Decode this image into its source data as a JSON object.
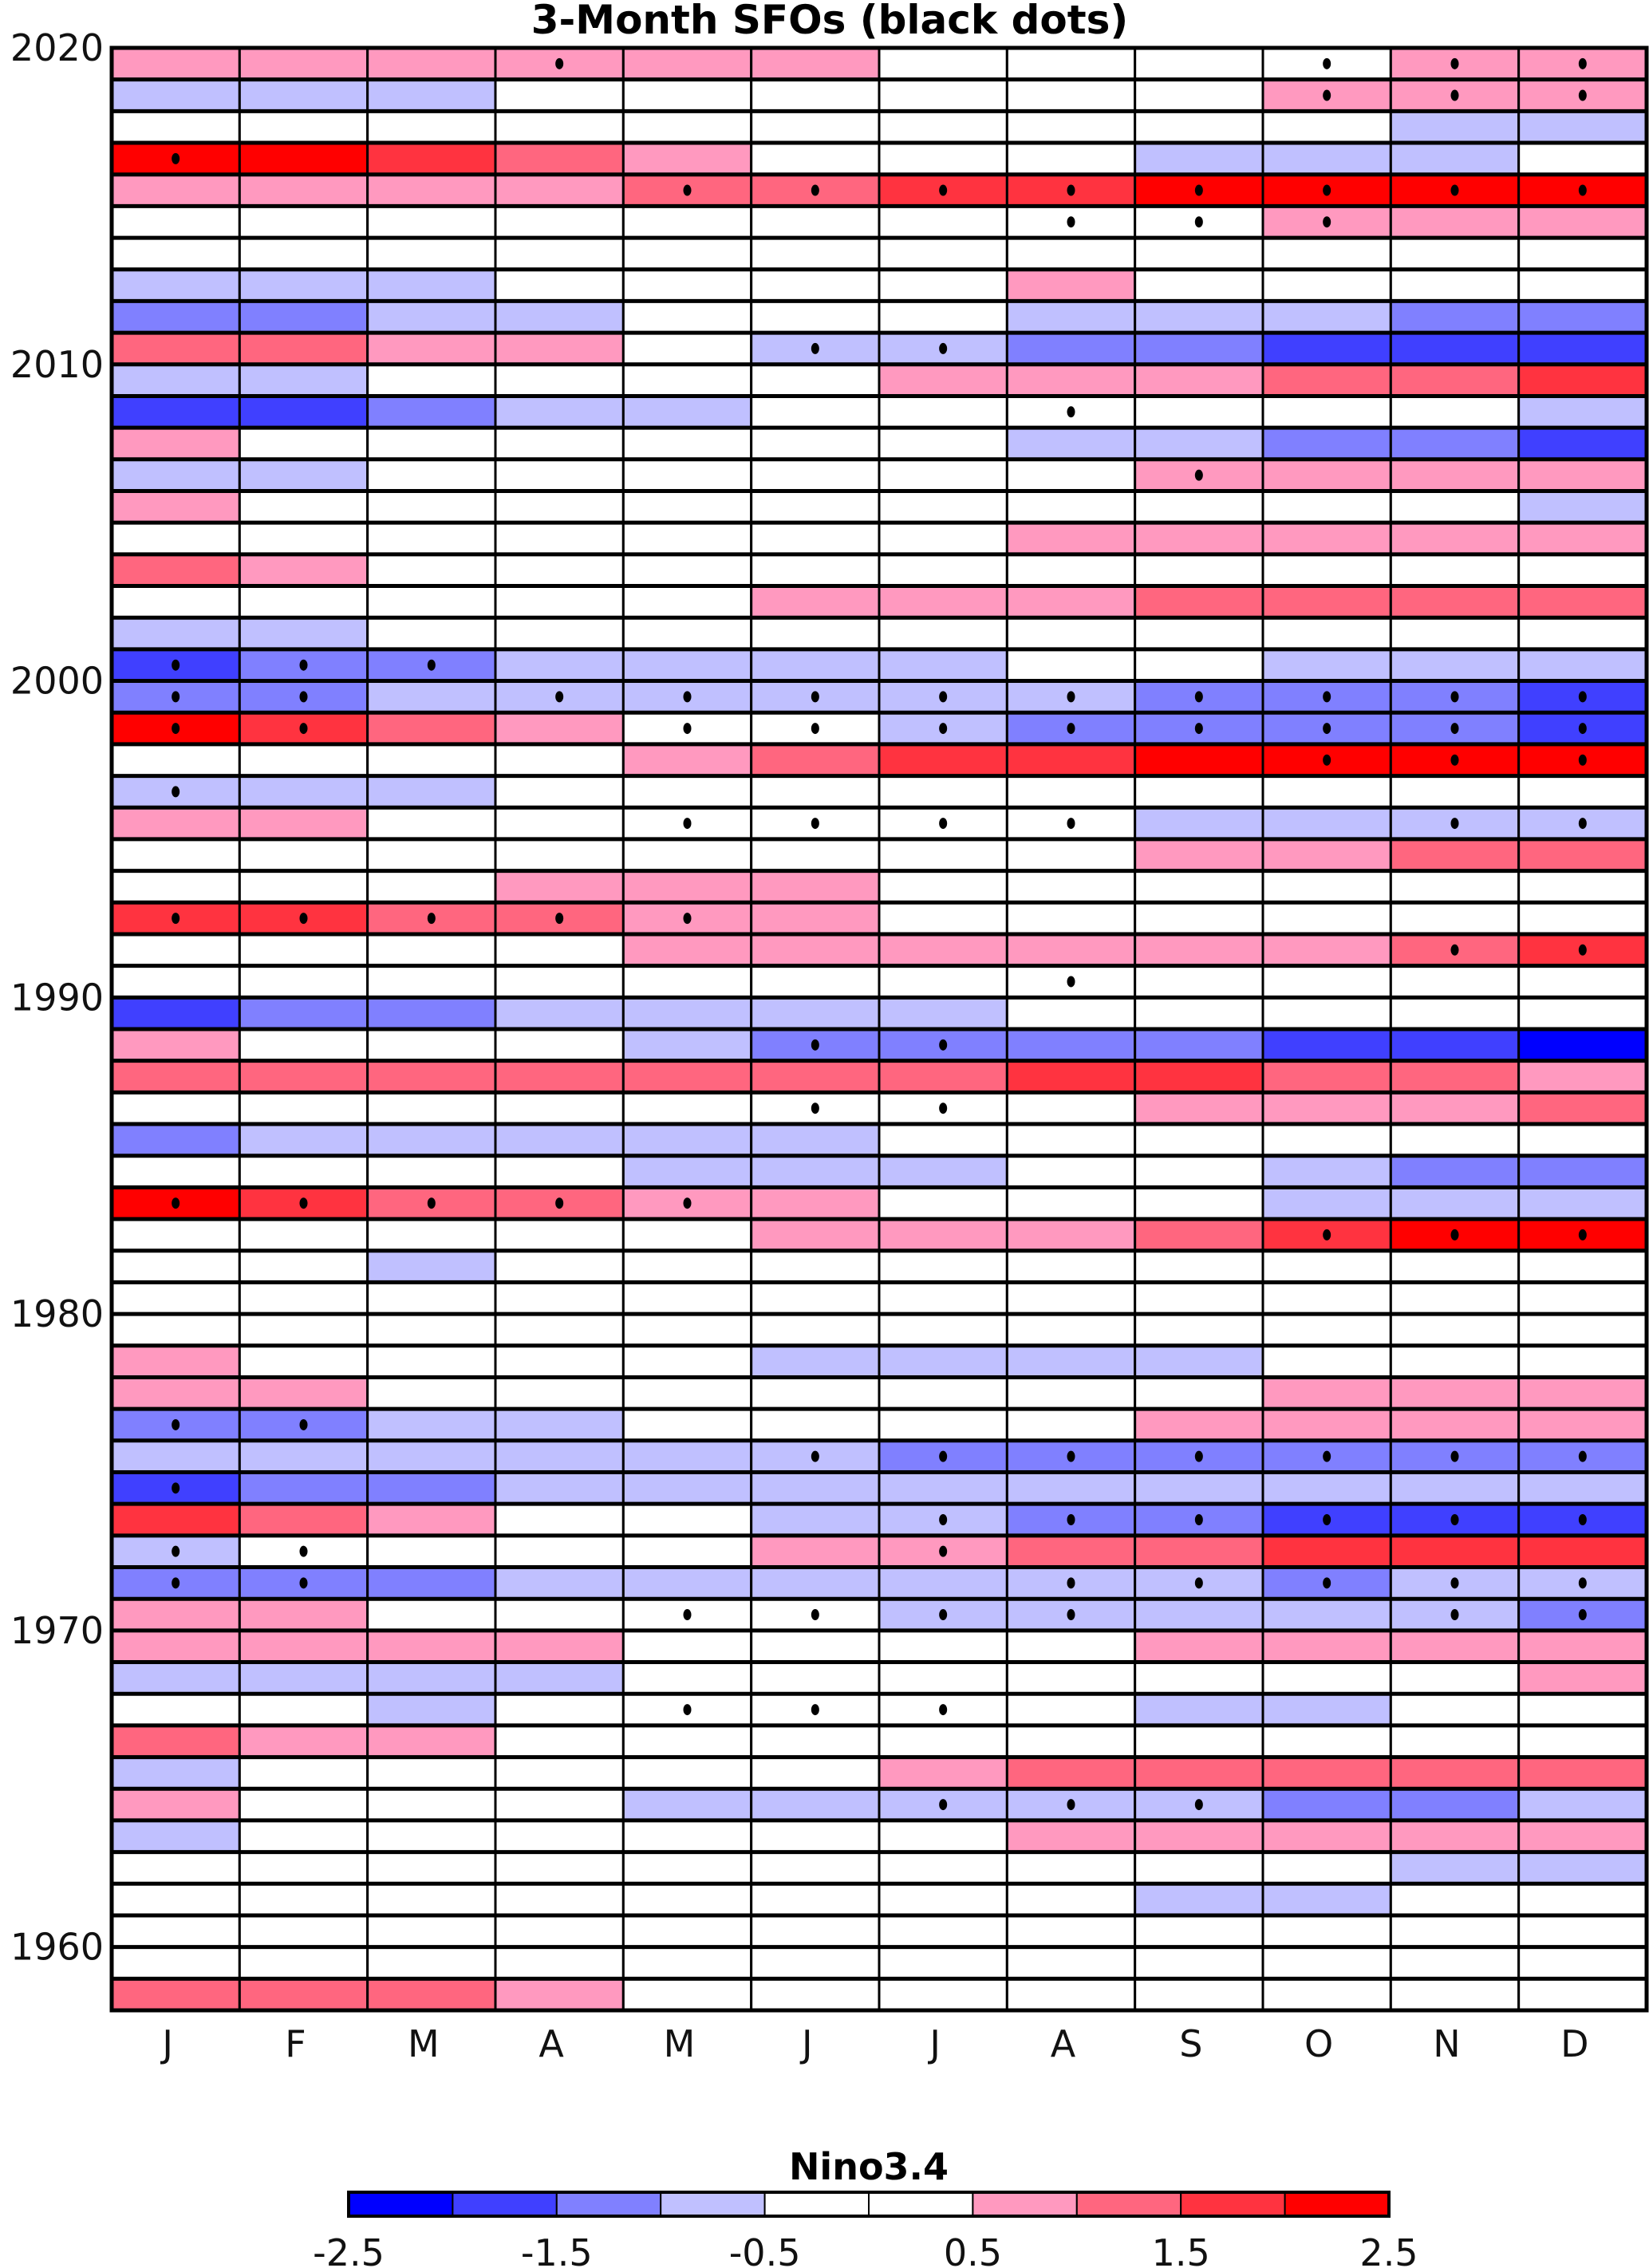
{
  "chart_data": {
    "type": "heatmap",
    "title": "3-Month SFOs (black dots)",
    "xlabel": "",
    "ylabel": "",
    "columns": [
      "J",
      "F",
      "M",
      "A",
      "M",
      "J",
      "J",
      "A",
      "S",
      "O",
      "N",
      "D"
    ],
    "y_tick_labels": [
      "2020",
      "2010",
      "2000",
      "1990",
      "1980",
      "1970",
      "1960"
    ],
    "y_ticks": [
      2020,
      2010,
      2000,
      1990,
      1980,
      1970,
      1960
    ],
    "ylim": [
      1958,
      2020
    ],
    "years": [
      2019,
      2018,
      2017,
      2016,
      2015,
      2014,
      2013,
      2012,
      2011,
      2010,
      2009,
      2008,
      2007,
      2006,
      2005,
      2004,
      2003,
      2002,
      2001,
      2000,
      1999,
      1998,
      1997,
      1996,
      1995,
      1994,
      1993,
      1992,
      1991,
      1990,
      1989,
      1988,
      1987,
      1986,
      1985,
      1984,
      1983,
      1982,
      1981,
      1980,
      1979,
      1978,
      1977,
      1976,
      1975,
      1974,
      1973,
      1972,
      1971,
      1970,
      1969,
      1968,
      1967,
      1966,
      1965,
      1964,
      1963,
      1962,
      1961,
      1960,
      1959,
      1958
    ],
    "values": [
      [
        0.75,
        0.75,
        0.75,
        0.75,
        0.75,
        0.75,
        0,
        0,
        0,
        0,
        0.75,
        0.75
      ],
      [
        -0.75,
        -0.75,
        -0.75,
        0,
        0,
        0,
        0,
        0,
        0,
        0.75,
        0.75,
        0.75
      ],
      [
        0,
        0,
        0,
        0,
        0,
        0,
        0,
        0,
        0,
        0,
        -0.75,
        -0.75
      ],
      [
        2.25,
        2.25,
        1.75,
        1.25,
        0.75,
        0,
        0,
        0,
        -0.75,
        -0.75,
        -0.75,
        0
      ],
      [
        0.75,
        0.75,
        0.75,
        0.75,
        1.25,
        1.25,
        1.75,
        1.75,
        2.25,
        2.25,
        2.25,
        2.25
      ],
      [
        0,
        0,
        0,
        0,
        0,
        0,
        0,
        0,
        0,
        0.75,
        0.75,
        0.75
      ],
      [
        0,
        0,
        0,
        0,
        0,
        0,
        0,
        0,
        0,
        0,
        0,
        0
      ],
      [
        -0.75,
        -0.75,
        -0.75,
        0,
        0,
        0,
        0,
        0.75,
        0,
        0,
        0,
        0
      ],
      [
        -1.25,
        -1.25,
        -0.75,
        -0.75,
        0,
        0,
        0,
        -0.75,
        -0.75,
        -0.75,
        -1.25,
        -1.25
      ],
      [
        1.25,
        1.25,
        0.75,
        0.75,
        0,
        -0.75,
        -0.75,
        -1.25,
        -1.25,
        -1.75,
        -1.75,
        -1.75
      ],
      [
        -0.75,
        -0.75,
        0,
        0,
        0,
        0,
        0.75,
        0.75,
        0.75,
        1.25,
        1.25,
        1.75
      ],
      [
        -1.75,
        -1.75,
        -1.25,
        -0.75,
        -0.75,
        0,
        0,
        0,
        0,
        0,
        0,
        -0.75
      ],
      [
        0.75,
        0,
        0,
        0,
        0,
        0,
        0,
        -0.75,
        -0.75,
        -1.25,
        -1.25,
        -1.75
      ],
      [
        -0.75,
        -0.75,
        0,
        0,
        0,
        0,
        0,
        0,
        0.75,
        0.75,
        0.75,
        0.75
      ],
      [
        0.75,
        0,
        0,
        0,
        0,
        0,
        0,
        0,
        0,
        0,
        0,
        -0.75
      ],
      [
        0,
        0,
        0,
        0,
        0,
        0,
        0,
        0.75,
        0.75,
        0.75,
        0.75,
        0.75
      ],
      [
        1.25,
        0.75,
        0,
        0,
        0,
        0,
        0,
        0,
        0,
        0,
        0,
        0
      ],
      [
        0,
        0,
        0,
        0,
        0,
        0.75,
        0.75,
        0.75,
        1.25,
        1.25,
        1.25,
        1.25
      ],
      [
        -0.75,
        -0.75,
        0,
        0,
        0,
        0,
        0,
        0,
        0,
        0,
        0,
        0
      ],
      [
        -1.75,
        -1.25,
        -1.25,
        -0.75,
        -0.75,
        -0.75,
        -0.75,
        0,
        0,
        -0.75,
        -0.75,
        -0.75
      ],
      [
        -1.25,
        -1.25,
        -0.75,
        -0.75,
        -0.75,
        -0.75,
        -0.75,
        -0.75,
        -1.25,
        -1.25,
        -1.25,
        -1.75
      ],
      [
        2.25,
        1.75,
        1.25,
        0.75,
        0,
        0,
        -0.75,
        -1.25,
        -1.25,
        -1.25,
        -1.25,
        -1.75
      ],
      [
        0,
        0,
        0,
        0,
        0.75,
        1.25,
        1.75,
        1.75,
        2.25,
        2.25,
        2.25,
        2.25
      ],
      [
        -0.75,
        -0.75,
        -0.75,
        0,
        0,
        0,
        0,
        0,
        0,
        0,
        0,
        0
      ],
      [
        0.75,
        0.75,
        0,
        0,
        0,
        0,
        0,
        0,
        -0.75,
        -0.75,
        -0.75,
        -0.75
      ],
      [
        0,
        0,
        0,
        0,
        0,
        0,
        0,
        0,
        0.75,
        0.75,
        1.25,
        1.25
      ],
      [
        0,
        0,
        0,
        0.75,
        0.75,
        0.75,
        0,
        0,
        0,
        0,
        0,
        0
      ],
      [
        1.75,
        1.75,
        1.25,
        1.25,
        0.75,
        0.75,
        0,
        0,
        0,
        0,
        0,
        0
      ],
      [
        0,
        0,
        0,
        0,
        0.75,
        0.75,
        0.75,
        0.75,
        0.75,
        0.75,
        1.25,
        1.75
      ],
      [
        0,
        0,
        0,
        0,
        0,
        0,
        0,
        0,
        0,
        0,
        0,
        0
      ],
      [
        -1.75,
        -1.25,
        -1.25,
        -0.75,
        -0.75,
        -0.75,
        -0.75,
        0,
        0,
        0,
        0,
        0
      ],
      [
        0.75,
        0,
        0,
        0,
        -0.75,
        -1.25,
        -1.25,
        -1.25,
        -1.25,
        -1.75,
        -1.75,
        -2.25
      ],
      [
        1.25,
        1.25,
        1.25,
        1.25,
        1.25,
        1.25,
        1.25,
        1.75,
        1.75,
        1.25,
        1.25,
        0.75
      ],
      [
        0,
        0,
        0,
        0,
        0,
        0,
        0,
        0,
        0.75,
        0.75,
        0.75,
        1.25
      ],
      [
        -1.25,
        -0.75,
        -0.75,
        -0.75,
        -0.75,
        -0.75,
        0,
        0,
        0,
        0,
        0,
        0
      ],
      [
        0,
        0,
        0,
        0,
        -0.75,
        -0.75,
        -0.75,
        0,
        0,
        -0.75,
        -1.25,
        -1.25
      ],
      [
        2.25,
        1.75,
        1.25,
        1.25,
        0.75,
        0.75,
        0,
        0,
        0,
        -0.75,
        -0.75,
        -0.75
      ],
      [
        0,
        0,
        0,
        0,
        0,
        0.75,
        0.75,
        0.75,
        1.25,
        1.75,
        2.25,
        2.25
      ],
      [
        0,
        0,
        -0.75,
        0,
        0,
        0,
        0,
        0,
        0,
        0,
        0,
        0
      ],
      [
        0,
        0,
        0,
        0,
        0,
        0,
        0,
        0,
        0,
        0,
        0,
        0
      ],
      [
        0,
        0,
        0,
        0,
        0,
        0,
        0,
        0,
        0,
        0,
        0,
        0
      ],
      [
        0.75,
        0,
        0,
        0,
        0,
        -0.75,
        -0.75,
        -0.75,
        -0.75,
        0,
        0,
        0
      ],
      [
        0.75,
        0.75,
        0,
        0,
        0,
        0,
        0,
        0,
        0,
        0.75,
        0.75,
        0.75
      ],
      [
        -1.25,
        -1.25,
        -0.75,
        -0.75,
        0,
        0,
        0,
        0,
        0.75,
        0.75,
        0.75,
        0.75
      ],
      [
        -0.75,
        -0.75,
        -0.75,
        -0.75,
        -0.75,
        -0.75,
        -1.25,
        -1.25,
        -1.25,
        -1.25,
        -1.25,
        -1.25
      ],
      [
        -1.75,
        -1.25,
        -1.25,
        -0.75,
        -0.75,
        -0.75,
        -0.75,
        -0.75,
        -0.75,
        -0.75,
        -0.75,
        -0.75
      ],
      [
        1.75,
        1.25,
        0.75,
        0,
        0,
        -0.75,
        -0.75,
        -1.25,
        -1.25,
        -1.75,
        -1.75,
        -1.75
      ],
      [
        -0.75,
        0,
        0,
        0,
        0,
        0.75,
        0.75,
        1.25,
        1.25,
        1.75,
        1.75,
        1.75
      ],
      [
        -1.25,
        -1.25,
        -1.25,
        -0.75,
        -0.75,
        -0.75,
        -0.75,
        -0.75,
        -0.75,
        -1.25,
        -0.75,
        -0.75
      ],
      [
        0.75,
        0.75,
        0,
        0,
        0,
        0,
        -0.75,
        -0.75,
        -0.75,
        -0.75,
        -0.75,
        -1.25
      ],
      [
        0.75,
        0.75,
        0.75,
        0.75,
        0,
        0,
        0,
        0,
        0.75,
        0.75,
        0.75,
        0.75
      ],
      [
        -0.75,
        -0.75,
        -0.75,
        -0.75,
        0,
        0,
        0,
        0,
        0,
        0,
        0,
        0.75
      ],
      [
        0,
        0,
        -0.75,
        0,
        0,
        0,
        0,
        0,
        -0.75,
        -0.75,
        0,
        0
      ],
      [
        1.25,
        0.75,
        0.75,
        0,
        0,
        0,
        0,
        0,
        0,
        0,
        0,
        0
      ],
      [
        -0.75,
        0,
        0,
        0,
        0,
        0,
        0.75,
        1.25,
        1.25,
        1.25,
        1.25,
        1.25
      ],
      [
        0.75,
        0,
        0,
        0,
        -0.75,
        -0.75,
        -0.75,
        -0.75,
        -0.75,
        -1.25,
        -1.25,
        -0.75
      ],
      [
        -0.75,
        0,
        0,
        0,
        0,
        0,
        0,
        0.75,
        0.75,
        0.75,
        0.75,
        0.75
      ],
      [
        0,
        0,
        0,
        0,
        0,
        0,
        0,
        0,
        0,
        0,
        -0.75,
        -0.75
      ],
      [
        0,
        0,
        0,
        0,
        0,
        0,
        0,
        0,
        -0.75,
        -0.75,
        0,
        0
      ],
      [
        0,
        0,
        0,
        0,
        0,
        0,
        0,
        0,
        0,
        0,
        0,
        0
      ],
      [
        0,
        0,
        0,
        0,
        0,
        0,
        0,
        0,
        0,
        0,
        0,
        0
      ],
      [
        1.25,
        1.25,
        1.25,
        0.75,
        0,
        0,
        0,
        0,
        0,
        0,
        0,
        0
      ]
    ],
    "sfo_dots": [
      [
        3,
        9,
        10,
        11
      ],
      [
        9,
        10,
        11
      ],
      [],
      [
        0
      ],
      [
        4,
        5,
        6,
        7,
        8,
        9,
        10,
        11
      ],
      [
        7,
        8,
        9
      ],
      [],
      [],
      [],
      [
        5,
        6
      ],
      [],
      [
        7
      ],
      [],
      [
        8
      ],
      [],
      [],
      [],
      [],
      [],
      [
        0,
        1,
        2
      ],
      [
        0,
        1,
        3,
        4,
        5,
        6,
        7,
        8,
        9,
        10,
        11
      ],
      [
        0,
        1,
        4,
        5,
        6,
        7,
        8,
        9,
        10,
        11
      ],
      [
        9,
        10,
        11
      ],
      [
        0
      ],
      [
        4,
        5,
        6,
        7,
        10,
        11
      ],
      [],
      [],
      [
        0,
        1,
        2,
        3,
        4
      ],
      [
        10,
        11
      ],
      [
        7
      ],
      [],
      [
        5,
        6
      ],
      [],
      [
        5,
        6
      ],
      [],
      [],
      [
        0,
        1,
        2,
        3,
        4
      ],
      [
        9,
        10,
        11
      ],
      [],
      [],
      [],
      [],
      [],
      [
        0,
        1
      ],
      [
        5,
        6,
        7,
        8,
        9,
        10,
        11
      ],
      [
        0
      ],
      [
        6,
        7,
        8,
        9,
        10,
        11
      ],
      [
        0,
        1,
        6
      ],
      [
        0,
        1,
        7,
        8,
        9,
        10,
        11
      ],
      [
        4,
        5,
        6,
        7,
        10,
        11
      ],
      [],
      [],
      [
        4,
        5,
        6
      ],
      [],
      [],
      [
        6,
        7,
        8
      ],
      [],
      [],
      [],
      [],
      [],
      []
    ],
    "colorbar": {
      "title": "Nino3.4",
      "boundaries": [
        -2.5,
        -2,
        -1.5,
        -1,
        -0.5,
        0,
        0.5,
        1,
        1.5,
        2,
        2.5
      ],
      "colors": [
        "#0000ff",
        "#4040ff",
        "#8080ff",
        "#c0c0ff",
        "#ffffff",
        "#ffffff",
        "#ff99bf",
        "#ff667f",
        "#ff3340",
        "#ff0000"
      ],
      "tick_labels": [
        "-2.5",
        "-1.5",
        "-0.5",
        "0.5",
        "1.5",
        "2.5"
      ],
      "ticks": [
        -2.5,
        -1.5,
        -0.5,
        0.5,
        1.5,
        2.5
      ]
    },
    "dot_color": "#000000",
    "grid": true
  }
}
